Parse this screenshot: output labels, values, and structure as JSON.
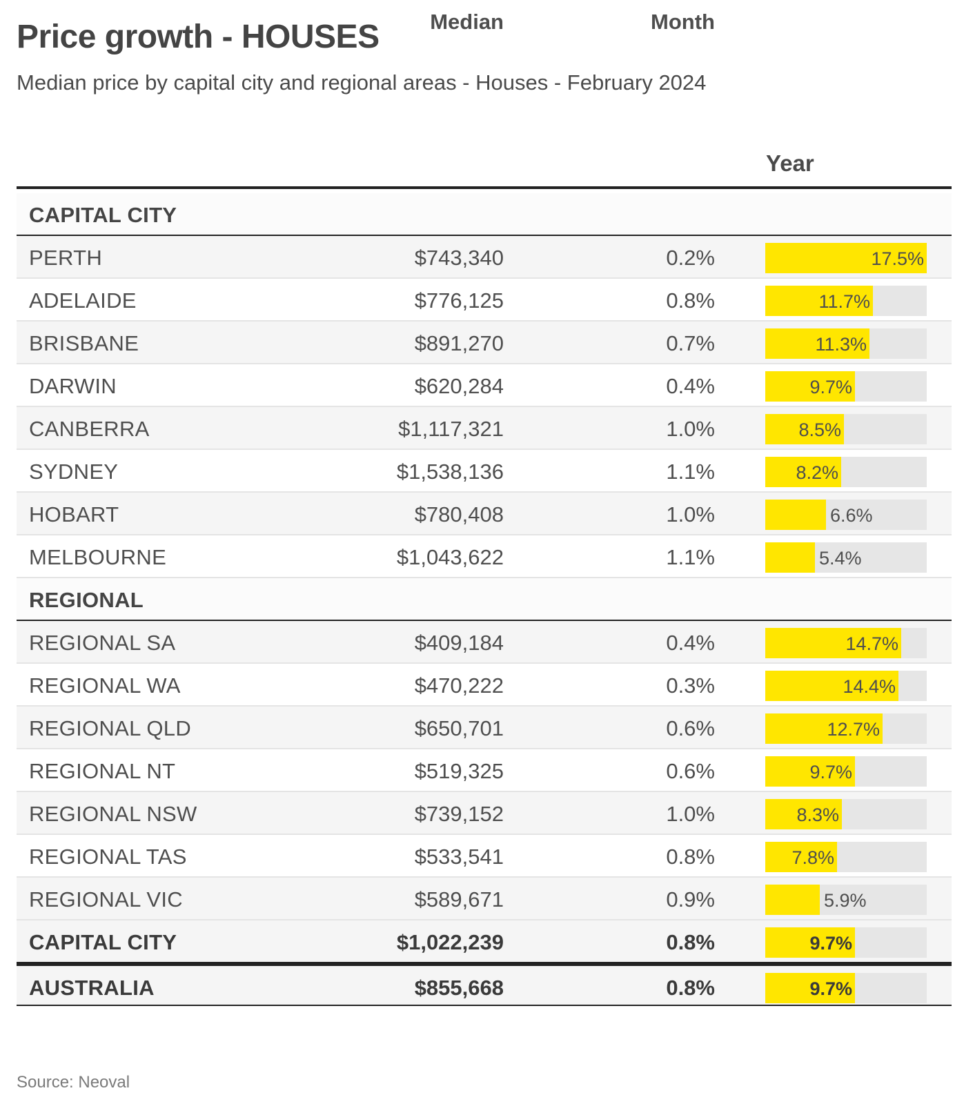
{
  "title": "Price growth - HOUSES",
  "subtitle": "Median price by capital city and regional areas - Houses - February 2024",
  "columns": {
    "median": "Median",
    "month": "Month",
    "year": "Year"
  },
  "source": "Source: Neoval",
  "colors": {
    "bar": "#ffe600",
    "track": "#e6e6e6"
  },
  "chart_data": {
    "type": "table",
    "value_max": 17.5,
    "rows": [
      {
        "kind": "section",
        "name": "CAPITAL CITY"
      },
      {
        "kind": "data",
        "name": "PERTH",
        "median": "$743,340",
        "month": "0.2%",
        "year": 17.5,
        "year_label": "17.5%"
      },
      {
        "kind": "data",
        "name": "ADELAIDE",
        "median": "$776,125",
        "month": "0.8%",
        "year": 11.7,
        "year_label": "11.7%"
      },
      {
        "kind": "data",
        "name": "BRISBANE",
        "median": "$891,270",
        "month": "0.7%",
        "year": 11.3,
        "year_label": "11.3%"
      },
      {
        "kind": "data",
        "name": "DARWIN",
        "median": "$620,284",
        "month": "0.4%",
        "year": 9.7,
        "year_label": "9.7%"
      },
      {
        "kind": "data",
        "name": "CANBERRA",
        "median": "$1,117,321",
        "month": "1.0%",
        "year": 8.5,
        "year_label": "8.5%"
      },
      {
        "kind": "data",
        "name": "SYDNEY",
        "median": "$1,538,136",
        "month": "1.1%",
        "year": 8.2,
        "year_label": "8.2%"
      },
      {
        "kind": "data",
        "name": "HOBART",
        "median": "$780,408",
        "month": "1.0%",
        "year": 6.6,
        "year_label": "6.6%"
      },
      {
        "kind": "data",
        "name": "MELBOURNE",
        "median": "$1,043,622",
        "month": "1.1%",
        "year": 5.4,
        "year_label": "5.4%"
      },
      {
        "kind": "section",
        "name": "REGIONAL"
      },
      {
        "kind": "data",
        "name": "REGIONAL SA",
        "median": "$409,184",
        "month": "0.4%",
        "year": 14.7,
        "year_label": "14.7%"
      },
      {
        "kind": "data",
        "name": "REGIONAL WA",
        "median": "$470,222",
        "month": "0.3%",
        "year": 14.4,
        "year_label": "14.4%"
      },
      {
        "kind": "data",
        "name": "REGIONAL QLD",
        "median": "$650,701",
        "month": "0.6%",
        "year": 12.7,
        "year_label": "12.7%"
      },
      {
        "kind": "data",
        "name": "REGIONAL NT",
        "median": "$519,325",
        "month": "0.6%",
        "year": 9.7,
        "year_label": "9.7%"
      },
      {
        "kind": "data",
        "name": "REGIONAL NSW",
        "median": "$739,152",
        "month": "1.0%",
        "year": 8.3,
        "year_label": "8.3%"
      },
      {
        "kind": "data",
        "name": "REGIONAL TAS",
        "median": "$533,541",
        "month": "0.8%",
        "year": 7.8,
        "year_label": "7.8%"
      },
      {
        "kind": "data",
        "name": "REGIONAL VIC",
        "median": "$589,671",
        "month": "0.9%",
        "year": 5.9,
        "year_label": "5.9%"
      },
      {
        "kind": "total",
        "name": "CAPITAL CITY",
        "median": "$1,022,239",
        "month": "0.8%",
        "year": 9.7,
        "year_label": "9.7%"
      },
      {
        "kind": "total",
        "name": "AUSTRALIA",
        "median": "$855,668",
        "month": "0.8%",
        "year": 9.7,
        "year_label": "9.7%"
      }
    ]
  }
}
